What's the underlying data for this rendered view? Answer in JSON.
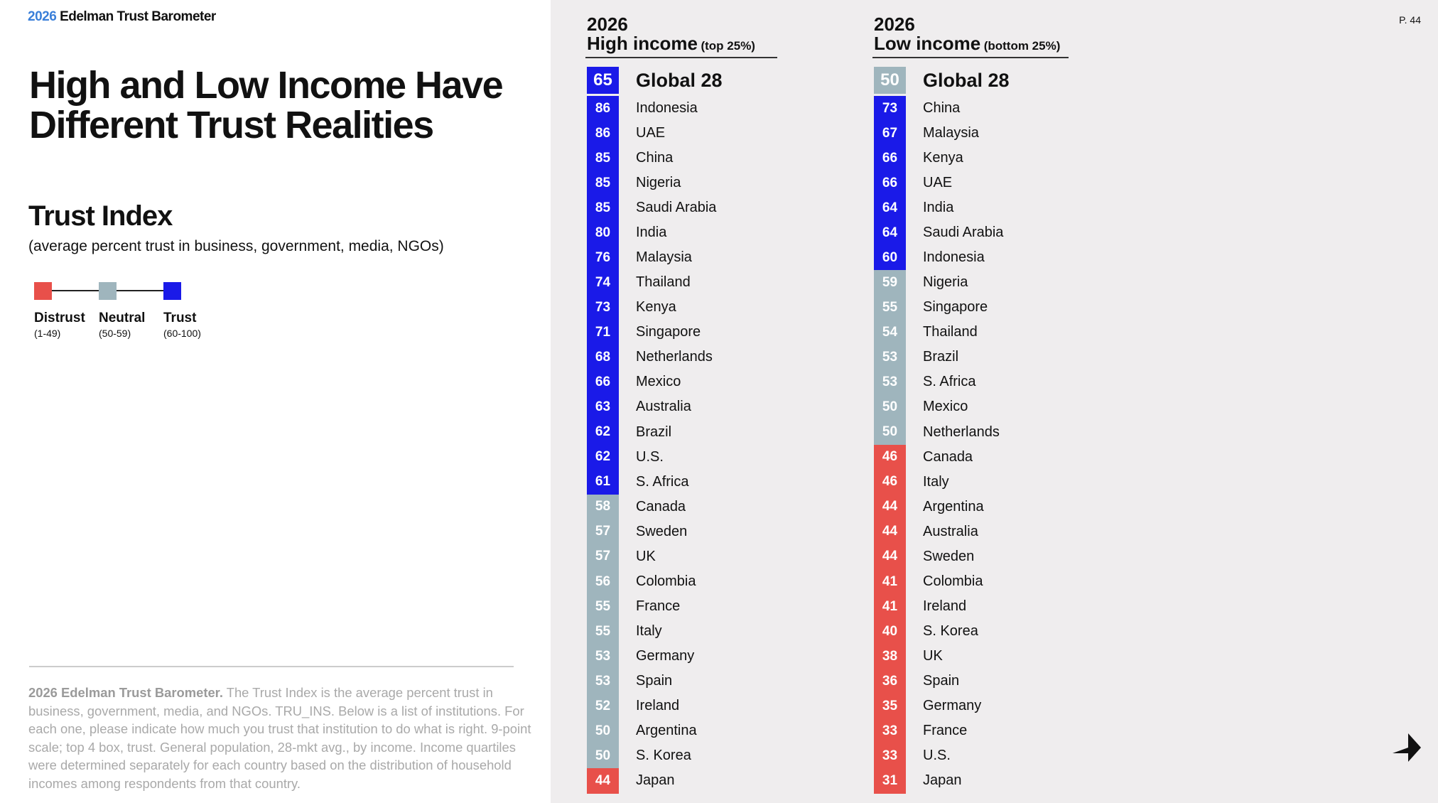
{
  "brand": {
    "year": "2026",
    "name": "Edelman Trust Barometer"
  },
  "page_number": "P. 44",
  "title": "High and Low Income Have Different Trust Realities",
  "section": {
    "title": "Trust Index",
    "subtitle": "(average percent trust in business, government, media, NGOs)"
  },
  "legend": [
    {
      "label": "Distrust",
      "range_label": "(1-49)",
      "min": 1,
      "max": 49,
      "color": "#e8504a"
    },
    {
      "label": "Neutral",
      "range_label": "(50-59)",
      "min": 50,
      "max": 59,
      "color": "#9fb5bd"
    },
    {
      "label": "Trust",
      "range_label": "(60-100)",
      "min": 60,
      "max": 100,
      "color": "#1a1ae8"
    }
  ],
  "footnote": {
    "lead": "2026 Edelman Trust Barometer.",
    "text": "The Trust Index is the average percent trust in business, government, media, and NGOs. TRU_INS. Below is a list of institutions. For each one, please indicate how much you trust that institution to do what is right. 9-point scale; top 4 box, trust. General population, 28-mkt avg., by income. Income quartiles were determined separately for each country based on the distribution of household incomes among respondents from that country."
  },
  "columns": [
    {
      "year": "2026",
      "title": "High income",
      "qualifier": "(top 25%)",
      "global": {
        "label": "Global 28",
        "value": 65
      },
      "rows": [
        {
          "country": "Indonesia",
          "value": 86
        },
        {
          "country": "UAE",
          "value": 86
        },
        {
          "country": "China",
          "value": 85
        },
        {
          "country": "Nigeria",
          "value": 85
        },
        {
          "country": "Saudi Arabia",
          "value": 85
        },
        {
          "country": "India",
          "value": 80
        },
        {
          "country": "Malaysia",
          "value": 76
        },
        {
          "country": "Thailand",
          "value": 74
        },
        {
          "country": "Kenya",
          "value": 73
        },
        {
          "country": "Singapore",
          "value": 71
        },
        {
          "country": "Netherlands",
          "value": 68
        },
        {
          "country": "Mexico",
          "value": 66
        },
        {
          "country": "Australia",
          "value": 63
        },
        {
          "country": "Brazil",
          "value": 62
        },
        {
          "country": "U.S.",
          "value": 62
        },
        {
          "country": "S. Africa",
          "value": 61
        },
        {
          "country": "Canada",
          "value": 58
        },
        {
          "country": "Sweden",
          "value": 57
        },
        {
          "country": "UK",
          "value": 57
        },
        {
          "country": "Colombia",
          "value": 56
        },
        {
          "country": "France",
          "value": 55
        },
        {
          "country": "Italy",
          "value": 55
        },
        {
          "country": "Germany",
          "value": 53
        },
        {
          "country": "Spain",
          "value": 53
        },
        {
          "country": "Ireland",
          "value": 52
        },
        {
          "country": "Argentina",
          "value": 50
        },
        {
          "country": "S. Korea",
          "value": 50
        },
        {
          "country": "Japan",
          "value": 44
        }
      ]
    },
    {
      "year": "2026",
      "title": "Low income",
      "qualifier": "(bottom 25%)",
      "global": {
        "label": "Global 28",
        "value": 50
      },
      "rows": [
        {
          "country": "China",
          "value": 73
        },
        {
          "country": "Malaysia",
          "value": 67
        },
        {
          "country": "Kenya",
          "value": 66
        },
        {
          "country": "UAE",
          "value": 66
        },
        {
          "country": "India",
          "value": 64
        },
        {
          "country": "Saudi Arabia",
          "value": 64
        },
        {
          "country": "Indonesia",
          "value": 60
        },
        {
          "country": "Nigeria",
          "value": 59
        },
        {
          "country": "Singapore",
          "value": 55
        },
        {
          "country": "Thailand",
          "value": 54
        },
        {
          "country": "Brazil",
          "value": 53
        },
        {
          "country": "S. Africa",
          "value": 53
        },
        {
          "country": "Mexico",
          "value": 50
        },
        {
          "country": "Netherlands",
          "value": 50
        },
        {
          "country": "Canada",
          "value": 46
        },
        {
          "country": "Italy",
          "value": 46
        },
        {
          "country": "Argentina",
          "value": 44
        },
        {
          "country": "Australia",
          "value": 44
        },
        {
          "country": "Sweden",
          "value": 44
        },
        {
          "country": "Colombia",
          "value": 41
        },
        {
          "country": "Ireland",
          "value": 41
        },
        {
          "country": "S. Korea",
          "value": 40
        },
        {
          "country": "UK",
          "value": 38
        },
        {
          "country": "Spain",
          "value": 36
        },
        {
          "country": "Germany",
          "value": 35
        },
        {
          "country": "France",
          "value": 33
        },
        {
          "country": "U.S.",
          "value": 33
        },
        {
          "country": "Japan",
          "value": 31
        }
      ]
    }
  ]
}
